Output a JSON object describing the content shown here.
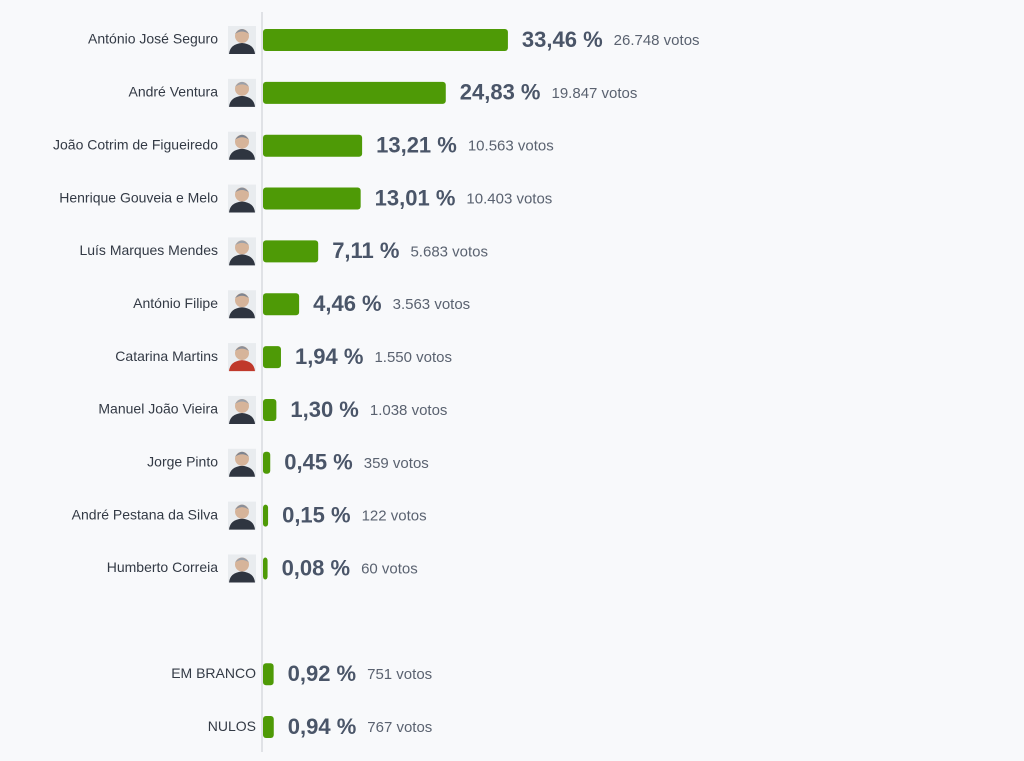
{
  "chart_data": {
    "type": "bar",
    "orientation": "horizontal",
    "color": "#4e9a06",
    "categories": [
      "António José Seguro",
      "André Ventura",
      "João Cotrim de Figueiredo",
      "Henrique Gouveia e Melo",
      "Luís Marques Mendes",
      "António Filipe",
      "Catarina Martins",
      "Manuel João Vieira",
      "Jorge Pinto",
      "André Pestana da Silva",
      "Humberto Correia",
      null,
      "EM BRANCO",
      "NULOS"
    ],
    "values": [
      33.46,
      24.83,
      13.21,
      13.01,
      7.11,
      4.46,
      1.94,
      1.3,
      0.45,
      0.15,
      0.08,
      null,
      0.92,
      0.94
    ],
    "value_labels": [
      "33,46 %",
      "24,83 %",
      "13,21 %",
      "13,01 %",
      "7,11 %",
      "4,46 %",
      "1,94 %",
      "1,30 %",
      "0,45 %",
      "0,15 %",
      "0,08 %",
      null,
      "0,92 %",
      "0,94 %"
    ],
    "votes": [
      26748,
      19847,
      10563,
      10403,
      5683,
      3563,
      1550,
      1038,
      359,
      122,
      60,
      null,
      751,
      767
    ],
    "votes_labels": [
      "26.748 votos",
      "19.847 votos",
      "10.563 votos",
      "10.403 votos",
      "5.683 votos",
      "3.563 votos",
      "1.550 votos",
      "1.038 votos",
      "359 votos",
      "122 votos",
      "60 votos",
      null,
      "751 votos",
      "767 votos"
    ]
  }
}
